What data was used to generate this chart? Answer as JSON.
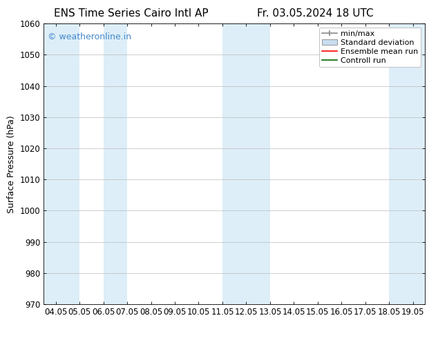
{
  "title_left": "ENS Time Series Cairo Intl AP",
  "title_right": "Fr. 03.05.2024 18 UTC",
  "ylabel": "Surface Pressure (hPa)",
  "ylim": [
    970,
    1060
  ],
  "yticks": [
    970,
    980,
    990,
    1000,
    1010,
    1020,
    1030,
    1040,
    1050,
    1060
  ],
  "xtick_labels": [
    "04.05",
    "05.05",
    "06.05",
    "07.05",
    "08.05",
    "09.05",
    "10.05",
    "11.05",
    "12.05",
    "13.05",
    "14.05",
    "15.05",
    "16.05",
    "17.05",
    "18.05",
    "19.05"
  ],
  "shaded_bands": [
    {
      "xmin": 0.0,
      "xmax": 1.5,
      "color": "#ddeef8"
    },
    {
      "xmin": 2.5,
      "xmax": 3.5,
      "color": "#ddeef8"
    },
    {
      "xmin": 7.5,
      "xmax": 9.5,
      "color": "#ddeef8"
    },
    {
      "xmin": 14.5,
      "xmax": 16.0,
      "color": "#ddeef8"
    }
  ],
  "watermark_text": "© weatheronline.in",
  "watermark_color": "#4488cc",
  "background_color": "#ffffff",
  "plot_bg_color": "#ffffff",
  "spine_color": "#000000",
  "grid_color": "#bbbbbb",
  "title_fontsize": 11,
  "tick_fontsize": 8.5,
  "ylabel_fontsize": 9,
  "legend_fontsize": 8
}
